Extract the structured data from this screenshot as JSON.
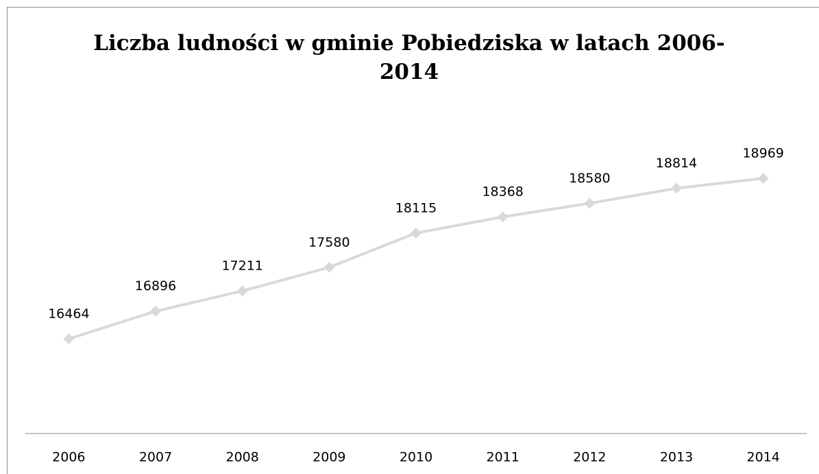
{
  "chart_data": {
    "type": "line",
    "title": "Liczba ludności w gminie Pobiedziska w latach 2006-2014",
    "categories": [
      "2006",
      "2007",
      "2008",
      "2009",
      "2010",
      "2011",
      "2012",
      "2013",
      "2014"
    ],
    "values": [
      16464,
      16896,
      17211,
      17580,
      18115,
      18368,
      18580,
      18814,
      18969
    ],
    "color": "#d9d9d9"
  }
}
